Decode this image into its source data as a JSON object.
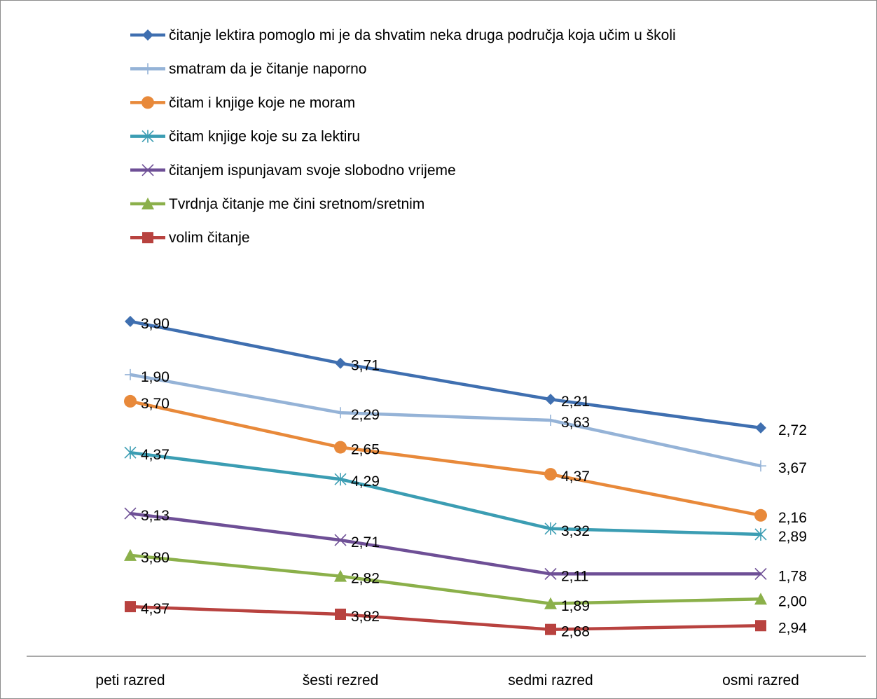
{
  "chart_data": {
    "type": "line",
    "title": "",
    "xlabel": "",
    "ylabel": "",
    "categories": [
      "peti razred",
      "šesti rezred",
      "sedmi razred",
      "osmi razred"
    ],
    "legend_position": "top",
    "grid": false,
    "series": [
      {
        "name": "čitanje lektira pomoglo mi je da shvatim neka druga područja koja učim u školi",
        "color": "#4472C4",
        "stroke": "#3F6FB0",
        "marker": "diamond",
        "values": [
          3.9,
          3.71,
          2.21,
          2.72
        ],
        "labels": [
          "3,90",
          "3,71",
          "2,21",
          "2,72"
        ],
        "plot_level": [
          5.3,
          4.2,
          3.25,
          2.5
        ]
      },
      {
        "name": "smatram da je čitanje naporno",
        "color": "#95B3D7",
        "stroke": "#95B3D7",
        "marker": "plus",
        "values": [
          1.9,
          2.29,
          3.63,
          3.67
        ],
        "labels": [
          "1,90",
          "2,29",
          "3,63",
          "3,67"
        ],
        "plot_level": [
          3.9,
          2.9,
          2.7,
          1.5
        ]
      },
      {
        "name": "čitam i knjige koje ne moram",
        "color": "#E8893A",
        "stroke": "#E8893A",
        "marker": "circle",
        "values": [
          3.7,
          2.65,
          4.37,
          2.16
        ],
        "labels": [
          "3,70",
          "2,65",
          "4,37",
          "2,16"
        ],
        "plot_level": [
          3.2,
          1.99,
          1.28,
          0.2
        ]
      },
      {
        "name": "čitam knjige koje su za lektiru",
        "color": "#3B9DB3",
        "stroke": "#3B9DB3",
        "marker": "asterisk",
        "values": [
          4.37,
          4.29,
          3.32,
          2.89
        ],
        "labels": [
          "4,37",
          "4,29",
          "3,32",
          "2,89"
        ],
        "plot_level": [
          1.85,
          1.15,
          -0.15,
          -0.3
        ]
      },
      {
        "name": "čitanjem ispunjavam svoje slobodno vrijeme",
        "color": "#7B5AA6",
        "stroke": "#6E4F96",
        "marker": "x",
        "values": [
          3.13,
          2.71,
          2.11,
          1.78
        ],
        "labels": [
          "3,13",
          "2,71",
          "2,11",
          "1,78"
        ],
        "plot_level": [
          0.25,
          -0.45,
          -1.34,
          -1.34
        ]
      },
      {
        "name": "Tvrdnja čitanje me čini sretnom/sretnim",
        "color": "#8BB04A",
        "stroke": "#8BB04A",
        "marker": "triangle",
        "values": [
          3.8,
          2.82,
          1.89,
          2.0
        ],
        "labels": [
          "3,80",
          "2,82",
          "1,89",
          "2,00"
        ],
        "plot_level": [
          -0.85,
          -1.4,
          -2.12,
          -2.0
        ]
      },
      {
        "name": "volim čitanje",
        "color": "#C0504D",
        "stroke": "#B8423F",
        "marker": "square",
        "values": [
          4.37,
          3.82,
          2.68,
          2.94
        ],
        "labels": [
          "4,37",
          "3,82",
          "2,68",
          "2,94"
        ],
        "plot_level": [
          -2.2,
          -2.4,
          -2.8,
          -2.7
        ]
      }
    ]
  }
}
